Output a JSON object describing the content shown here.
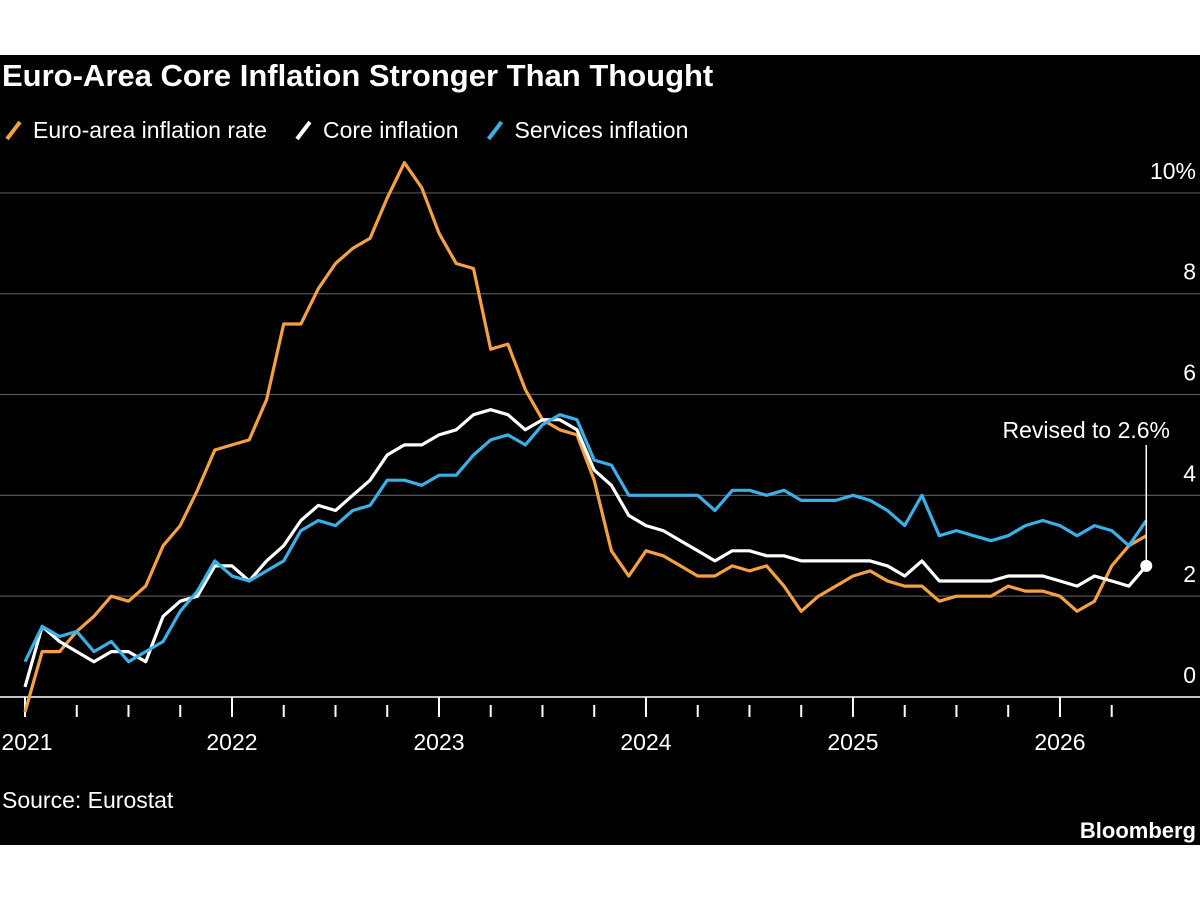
{
  "chart_data": {
    "type": "line",
    "title": "Euro-Area Core Inflation Stronger Than Thought",
    "source": "Source: Eurostat",
    "brand": "Bloomberg",
    "annotation": "Revised to 2.6%",
    "x": [
      2021,
      2021.083,
      2021.167,
      2021.25,
      2021.333,
      2021.417,
      2021.5,
      2021.583,
      2021.667,
      2021.75,
      2021.833,
      2021.917,
      2022,
      2022.083,
      2022.167,
      2022.25,
      2022.333,
      2022.417,
      2022.5,
      2022.583,
      2022.667,
      2022.75,
      2022.833,
      2022.917,
      2023,
      2023.083,
      2023.167,
      2023.25,
      2023.333,
      2023.417,
      2023.5,
      2023.583,
      2023.667,
      2023.75,
      2023.833,
      2023.917,
      2024,
      2024.083,
      2024.167,
      2024.25,
      2024.333,
      2024.417,
      2024.5,
      2024.583,
      2024.667,
      2024.75,
      2024.833,
      2024.917,
      2025,
      2025.083,
      2025.167,
      2025.25,
      2025.333,
      2025.417,
      2025.5,
      2025.583,
      2025.667,
      2025.75,
      2025.833,
      2025.917,
      2026,
      2026.083,
      2026.167,
      2026.25,
      2026.333,
      2026.417
    ],
    "series": [
      {
        "name": "Euro-area inflation rate",
        "color": "#f5a142",
        "values": [
          -0.3,
          0.9,
          0.9,
          1.3,
          1.6,
          2.0,
          1.9,
          2.2,
          3.0,
          3.4,
          4.1,
          4.9,
          5.0,
          5.1,
          5.9,
          7.4,
          7.4,
          8.1,
          8.6,
          8.9,
          9.1,
          9.9,
          10.6,
          10.1,
          9.2,
          8.6,
          8.5,
          6.9,
          7.0,
          6.1,
          5.5,
          5.3,
          5.2,
          4.3,
          2.9,
          2.4,
          2.9,
          2.8,
          2.6,
          2.4,
          2.4,
          2.6,
          2.5,
          2.6,
          2.2,
          1.7,
          2.0,
          2.2,
          2.4,
          2.5,
          2.3,
          2.2,
          2.2,
          1.9,
          2.0,
          2.0,
          2.0,
          2.2,
          2.1,
          2.1,
          2.0,
          1.7,
          1.9,
          2.6,
          3.0,
          3.2
        ]
      },
      {
        "name": "Core inflation",
        "color": "#ffffff",
        "values": [
          0.2,
          1.4,
          1.1,
          0.9,
          0.7,
          0.9,
          0.9,
          0.7,
          1.6,
          1.9,
          2.0,
          2.6,
          2.6,
          2.3,
          2.7,
          3.0,
          3.5,
          3.8,
          3.7,
          4.0,
          4.3,
          4.8,
          5.0,
          5.0,
          5.2,
          5.3,
          5.6,
          5.7,
          5.6,
          5.3,
          5.5,
          5.5,
          5.3,
          4.5,
          4.2,
          3.6,
          3.4,
          3.3,
          3.1,
          2.9,
          2.7,
          2.9,
          2.9,
          2.8,
          2.8,
          2.7,
          2.7,
          2.7,
          2.7,
          2.7,
          2.6,
          2.4,
          2.7,
          2.3,
          2.3,
          2.3,
          2.3,
          2.4,
          2.4,
          2.4,
          2.3,
          2.2,
          2.4,
          2.3,
          2.2,
          2.6
        ]
      },
      {
        "name": "Services inflation",
        "color": "#3ab0e6",
        "values": [
          0.7,
          1.4,
          1.2,
          1.3,
          0.9,
          1.1,
          0.7,
          0.9,
          1.1,
          1.7,
          2.1,
          2.7,
          2.4,
          2.3,
          2.5,
          2.7,
          3.3,
          3.5,
          3.4,
          3.7,
          3.8,
          4.3,
          4.3,
          4.2,
          4.4,
          4.4,
          4.8,
          5.1,
          5.2,
          5.0,
          5.4,
          5.6,
          5.5,
          4.7,
          4.6,
          4.0,
          4.0,
          4.0,
          4.0,
          4.0,
          3.7,
          4.1,
          4.1,
          4.0,
          4.1,
          3.9,
          3.9,
          3.9,
          4.0,
          3.9,
          3.7,
          3.4,
          4.0,
          3.2,
          3.3,
          3.2,
          3.1,
          3.2,
          3.4,
          3.5,
          3.4,
          3.2,
          3.4,
          3.3,
          3.0,
          3.5
        ]
      }
    ],
    "xlim": [
      2021,
      2026.65
    ],
    "xticks": [
      2021,
      2022,
      2023,
      2024,
      2025,
      2026
    ],
    "xminorticks": [
      2021.25,
      2021.5,
      2021.75,
      2022.25,
      2022.5,
      2022.75,
      2023.25,
      2023.5,
      2023.75,
      2024.25,
      2024.5,
      2024.75,
      2025.25,
      2025.5,
      2025.75,
      2026.25
    ],
    "ylim": [
      -0.6,
      10.8
    ],
    "yticks": [
      0,
      2,
      4,
      6,
      8,
      {
        "value": 10,
        "label": "10%"
      }
    ],
    "grid": true
  }
}
